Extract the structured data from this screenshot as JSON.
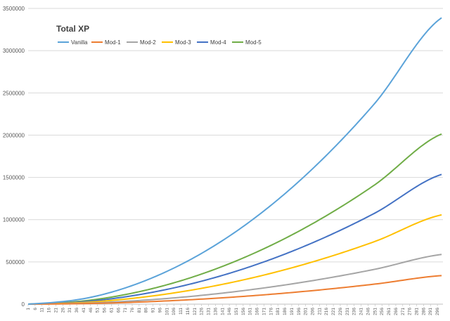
{
  "chart_data": {
    "type": "line",
    "title": "Total XP",
    "xlabel": "",
    "ylabel": "",
    "legend_position": "top-left",
    "grid": "horizontal",
    "x_range": [
      1,
      300
    ],
    "x_tick_labels": [
      "1",
      "6",
      "11",
      "16",
      "21",
      "26",
      "31",
      "36",
      "41",
      "46",
      "51",
      "56",
      "61",
      "66",
      "71",
      "76",
      "81",
      "86",
      "91",
      "96",
      "101",
      "106",
      "111",
      "116",
      "121",
      "126",
      "131",
      "136",
      "141",
      "146",
      "151",
      "156",
      "161",
      "166",
      "171",
      "176",
      "181",
      "186",
      "191",
      "196",
      "201",
      "206",
      "211",
      "216",
      "221",
      "226",
      "231",
      "236",
      "241",
      "246",
      "251",
      "256",
      "261",
      "266",
      "271",
      "276",
      "281",
      "286",
      "291",
      "296"
    ],
    "y_ticks": [
      "0",
      "500000",
      "1000000",
      "1500000",
      "2000000",
      "2500000",
      "3000000",
      "3500000"
    ],
    "ylim": [
      0,
      3500000
    ],
    "x": [
      1,
      50,
      100,
      150,
      200,
      250,
      300
    ],
    "series": [
      {
        "name": "Vanilla",
        "color": "#5BA3D9",
        "values": [
          0,
          95000,
          380000,
          850000,
          1510000,
          2360000,
          3400000
        ]
      },
      {
        "name": "Mod-1",
        "color": "#ED7D31",
        "values": [
          0,
          9400,
          37700,
          84800,
          150700,
          235600,
          339000
        ]
      },
      {
        "name": "Mod-2",
        "color": "#A5A5A5",
        "values": [
          0,
          16400,
          65600,
          147500,
          262200,
          409700,
          590000
        ]
      },
      {
        "name": "Mod-3",
        "color": "#FFC000",
        "values": [
          0,
          29400,
          117800,
          265000,
          471100,
          736100,
          1060000
        ]
      },
      {
        "name": "Mod-4",
        "color": "#4472C4",
        "values": [
          0,
          42800,
          171100,
          385000,
          684400,
          1069500,
          1540000
        ]
      },
      {
        "name": "Mod-5",
        "color": "#70AD47",
        "values": [
          0,
          56100,
          224400,
          505000,
          897800,
          1402800,
          2020000
        ]
      }
    ]
  }
}
